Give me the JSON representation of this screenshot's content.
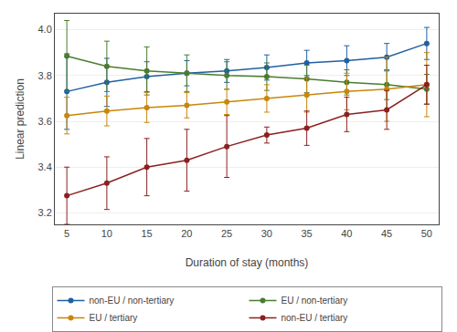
{
  "chart_data": {
    "type": "line",
    "xlabel": "Duration of stay (months)",
    "ylabel": "Linear prediction",
    "x": [
      5,
      10,
      15,
      20,
      25,
      30,
      35,
      40,
      45,
      50
    ],
    "series": [
      {
        "name": "non-EU / non-tertiary",
        "color": "#2060a0",
        "values": [
          3.73,
          3.77,
          3.795,
          3.81,
          3.82,
          3.835,
          3.855,
          3.865,
          3.88,
          3.94
        ],
        "y_lo": [
          3.565,
          3.665,
          3.73,
          3.755,
          3.77,
          3.78,
          3.8,
          3.8,
          3.82,
          3.87
        ],
        "y_hi": [
          3.895,
          3.875,
          3.86,
          3.865,
          3.87,
          3.89,
          3.91,
          3.93,
          3.94,
          4.01
        ]
      },
      {
        "name": "EU / non-tertiary",
        "color": "#4a7c2f",
        "values": [
          3.885,
          3.84,
          3.82,
          3.81,
          3.8,
          3.795,
          3.785,
          3.77,
          3.76,
          3.74
        ],
        "y_lo": [
          3.73,
          3.73,
          3.715,
          3.73,
          3.74,
          3.735,
          3.725,
          3.715,
          3.695,
          3.675
        ],
        "y_hi": [
          4.04,
          3.95,
          3.925,
          3.89,
          3.86,
          3.855,
          3.845,
          3.825,
          3.825,
          3.805
        ]
      },
      {
        "name": "EU / tertiary",
        "color": "#c8860a",
        "values": [
          3.625,
          3.645,
          3.66,
          3.67,
          3.685,
          3.7,
          3.715,
          3.73,
          3.74,
          3.76
        ],
        "y_lo": [
          3.545,
          3.58,
          3.595,
          3.615,
          3.63,
          3.64,
          3.64,
          3.65,
          3.6,
          3.62
        ],
        "y_hi": [
          3.705,
          3.71,
          3.725,
          3.725,
          3.74,
          3.76,
          3.79,
          3.81,
          3.88,
          3.9
        ]
      },
      {
        "name": "non-EU / tertiary",
        "color": "#8b2020",
        "values": [
          3.275,
          3.33,
          3.4,
          3.43,
          3.49,
          3.54,
          3.57,
          3.63,
          3.65,
          3.76
        ],
        "y_lo": [
          3.15,
          3.215,
          3.275,
          3.295,
          3.355,
          3.505,
          3.495,
          3.555,
          3.565,
          3.675
        ],
        "y_hi": [
          3.4,
          3.445,
          3.525,
          3.565,
          3.625,
          3.575,
          3.645,
          3.705,
          3.735,
          3.845
        ]
      }
    ],
    "xlim": [
      3.5,
      51.5
    ],
    "xticks": [
      5,
      10,
      15,
      20,
      25,
      30,
      35,
      40,
      45,
      50
    ],
    "ylim": [
      3.15,
      4.07
    ],
    "yticks": [
      3.2,
      3.4,
      3.6,
      3.8,
      4.0
    ],
    "grid": true,
    "legend": "bottom",
    "marker": "circle",
    "line_style": "solid"
  }
}
